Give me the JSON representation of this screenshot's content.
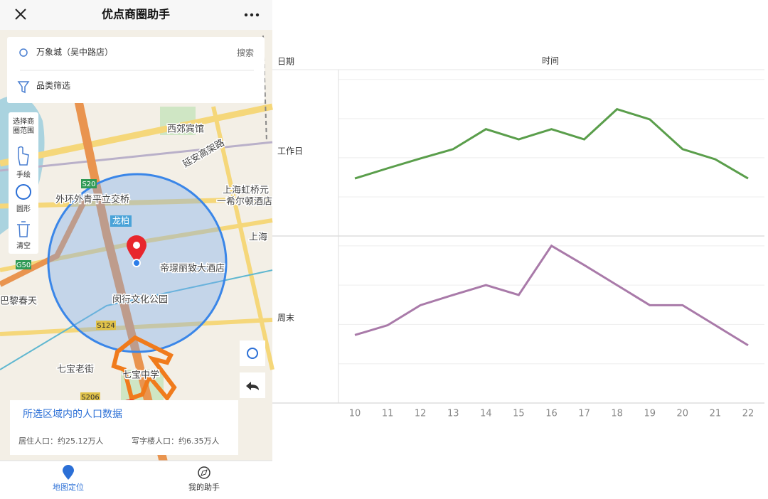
{
  "app": {
    "title": "优点商圈助手",
    "search": {
      "location": "万象城（吴中路店）",
      "button": "搜索"
    },
    "filter": "品类筛选",
    "tools": {
      "header": "选择商圈范围",
      "items": [
        "手绘",
        "圆形",
        "清空"
      ]
    },
    "map_labels": [
      "西郊宾馆",
      "延安高架路",
      "外环外青平立交桥",
      "龙柏",
      "帝璟丽致大酒店",
      "闵行文化公园",
      "上海虹桥元",
      "一希尔顿酒店",
      "巴黎春天",
      "七宝老街",
      "七宝中学",
      "S20",
      "G50",
      "S124",
      "S206",
      "上海"
    ],
    "card": {
      "title": "所选区域内的人口数据",
      "resident": "居住人口：约25.12万人",
      "office": "写字楼人口：约6.35万人"
    },
    "tabs": [
      "地图定位",
      "我的助手"
    ]
  },
  "chart_data": {
    "type": "line",
    "x_label": "时间",
    "row_label": "日期",
    "x": [
      10,
      11,
      12,
      13,
      14,
      15,
      16,
      17,
      18,
      19,
      20,
      21,
      22
    ],
    "xlim": [
      9.5,
      22.5
    ],
    "ylim": [
      0,
      4.25
    ],
    "yticks": [
      0,
      1,
      2,
      3,
      4
    ],
    "grid": true,
    "series": [
      {
        "name": "工作日",
        "color": "#5a9e4b",
        "values": [
          1.47,
          1.73,
          1.98,
          2.22,
          2.73,
          2.47,
          2.73,
          2.47,
          3.24,
          2.98,
          2.22,
          1.96,
          1.47
        ]
      },
      {
        "name": "周末",
        "color": "#a97aa9",
        "values": [
          1.73,
          1.98,
          2.49,
          2.75,
          3.0,
          2.75,
          4.0,
          3.51,
          3.0,
          2.49,
          2.49,
          1.98,
          1.47
        ]
      }
    ]
  }
}
